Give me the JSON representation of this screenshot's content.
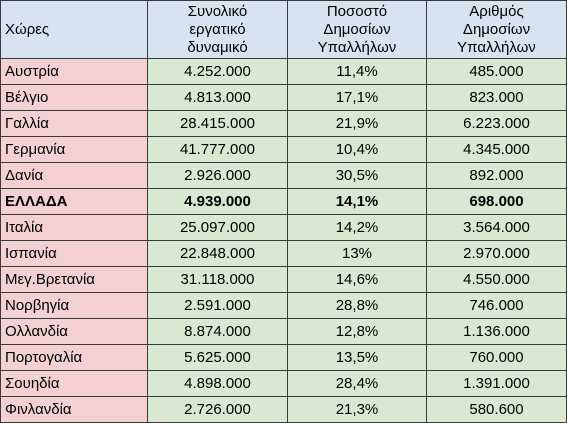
{
  "headers": [
    "Χώρες",
    "Συνολικό\nεργατικό\nδυναμικό",
    "Ποσοστό\nΔημοσίων\nΥπαλλήλων",
    "Αριθμός\nΔημοσίων\nΥπαλλήλων"
  ],
  "rows": [
    {
      "country": "Αυστρία",
      "labor": "4.252.000",
      "pct": "11,4%",
      "num": "485.000"
    },
    {
      "country": "Βέλγιο",
      "labor": "4.813.000",
      "pct": "17,1%",
      "num": "823.000"
    },
    {
      "country": "Γαλλία",
      "labor": "28.415.000",
      "pct": "21,9%",
      "num": "6.223.000"
    },
    {
      "country": "Γερμανία",
      "labor": "41.777.000",
      "pct": "10,4%",
      "num": "4.345.000"
    },
    {
      "country": "Δανία",
      "labor": "2.926.000",
      "pct": "30,5%",
      "num": "892.000"
    },
    {
      "country": "ΕΛΛΑΔΑ",
      "labor": "4.939.000",
      "pct": "14,1%",
      "num": "698.000",
      "bold": true
    },
    {
      "country": "Ιταλία",
      "labor": "25.097.000",
      "pct": "14,2%",
      "num": "3.564.000"
    },
    {
      "country": "Ισπανία",
      "labor": "22.848.000",
      "pct": "13%",
      "num": "2.970.000"
    },
    {
      "country": "Μεγ.Βρετανία",
      "labor": "31.118.000",
      "pct": "14,6%",
      "num": "4.550.000"
    },
    {
      "country": "Νορβηγία",
      "labor": "2.591.000",
      "pct": "28,8%",
      "num": "746.000"
    },
    {
      "country": "Ολλανδία",
      "labor": "8.874.000",
      "pct": "12,8%",
      "num": "1.136.000"
    },
    {
      "country": "Πορτογαλία",
      "labor": "5.625.000",
      "pct": "13,5%",
      "num": "760.000"
    },
    {
      "country": "Σουηδία",
      "labor": "4.898.000",
      "pct": "28,4%",
      "num": "1.391.000"
    },
    {
      "country": "Φινλανδία",
      "labor": "2.726.000",
      "pct": "21,3%",
      "num": "580.600"
    }
  ],
  "colors": {
    "header_bg": "#d6e4f1",
    "country_bg": "#f2d0d4",
    "value_bg": "#d8e9d2",
    "border": "#3a3a3a"
  }
}
